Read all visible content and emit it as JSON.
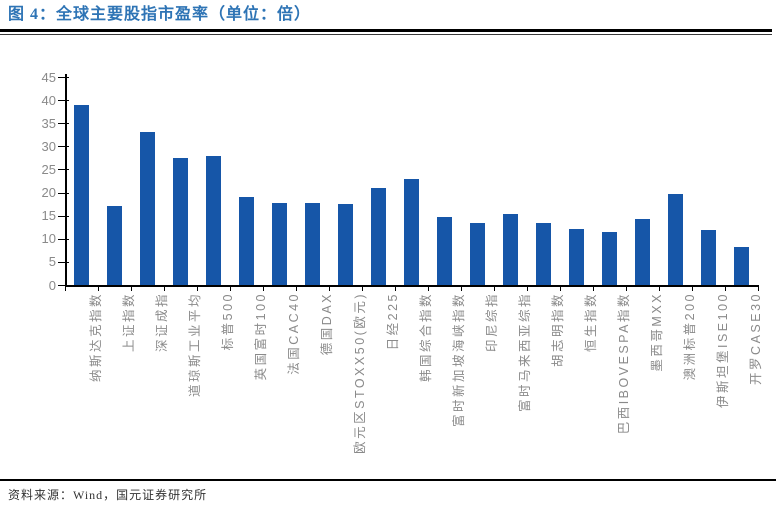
{
  "page": {
    "title": "图 4：全球主要股指市盈率（单位：倍）",
    "source": "资料来源：Wind，国元证券研究所"
  },
  "chart_data": {
    "type": "bar",
    "title": "全球主要股指市盈率（单位：倍）",
    "categories": [
      "纳斯达克指数",
      "上证指数",
      "深证成指",
      "道琼斯工业平均",
      "标普500",
      "英国富时100",
      "法国CAC40",
      "德国DAX",
      "欧元区STOXX50(欧元)",
      "日经225",
      "韩国综合指数",
      "富时新加坡海峡指数",
      "印尼综指",
      "富时马来西亚综指",
      "胡志明指数",
      "恒生指数",
      "巴西IBOVESPA指数",
      "墨西哥MXX",
      "澳洲标普200",
      "伊斯坦堡ISE100",
      "开罗CASE30"
    ],
    "values": [
      38.9,
      17.1,
      33.0,
      27.4,
      27.9,
      19.1,
      17.7,
      17.8,
      17.5,
      21.0,
      23.0,
      14.7,
      13.4,
      15.4,
      13.5,
      12.2,
      11.4,
      14.2,
      19.6,
      11.9,
      8.2
    ],
    "xlabel": "",
    "ylabel": "",
    "ylim": [
      0,
      45
    ],
    "ytick_step": 5,
    "grid": false,
    "legend": false,
    "bar_color": "#1656A8",
    "axis_color": "#000000",
    "tick_label_color": "#8a8a8a",
    "title_color": "#2E74B5"
  }
}
